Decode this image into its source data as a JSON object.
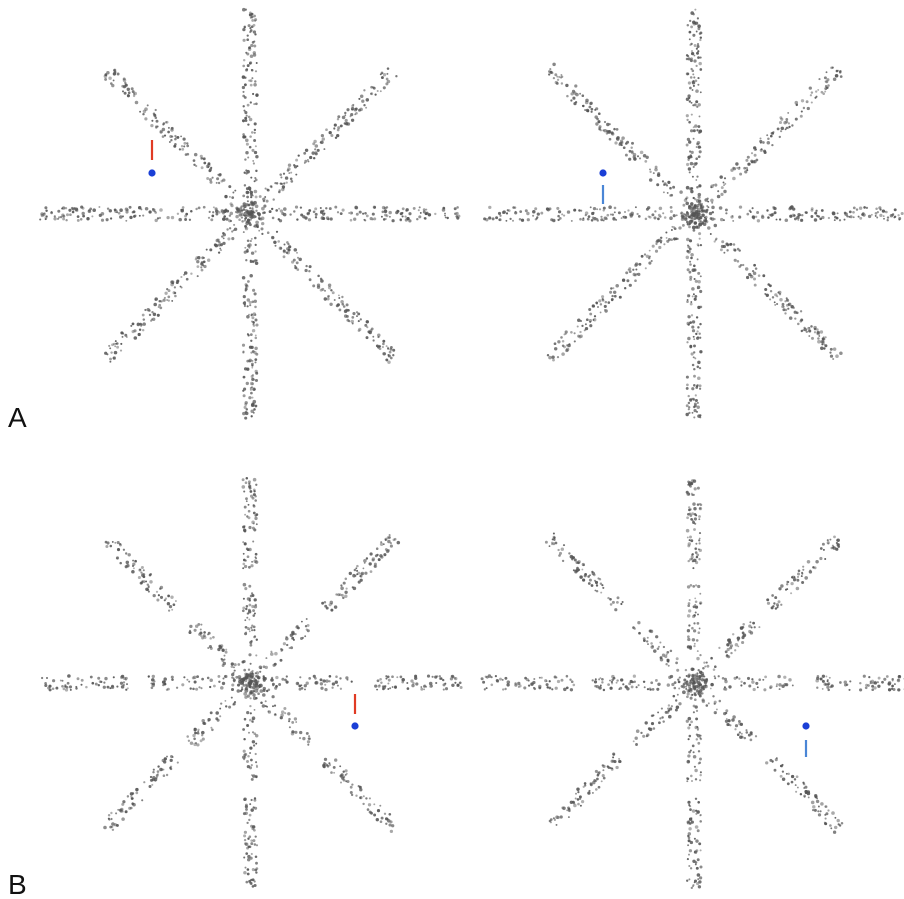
{
  "figure": {
    "rows": [
      {
        "label": "A",
        "gapped_spokes": false,
        "panels": [
          {
            "line_color": "#e03b24",
            "dot_color": "#1a3fd6",
            "line_relation": "above-dot"
          },
          {
            "line_color": "#4a86d6",
            "dot_color": "#1a3fd6",
            "line_relation": "below-dot"
          }
        ]
      },
      {
        "label": "B",
        "gapped_spokes": true,
        "panels": [
          {
            "line_color": "#e03b24",
            "dot_color": "#1a3fd6",
            "line_relation": "above-dot"
          },
          {
            "line_color": "#4a86d6",
            "dot_color": "#1a3fd6",
            "line_relation": "below-dot"
          }
        ]
      }
    ],
    "dot_texture_color": "#555555",
    "star_spoke_count": 8
  }
}
